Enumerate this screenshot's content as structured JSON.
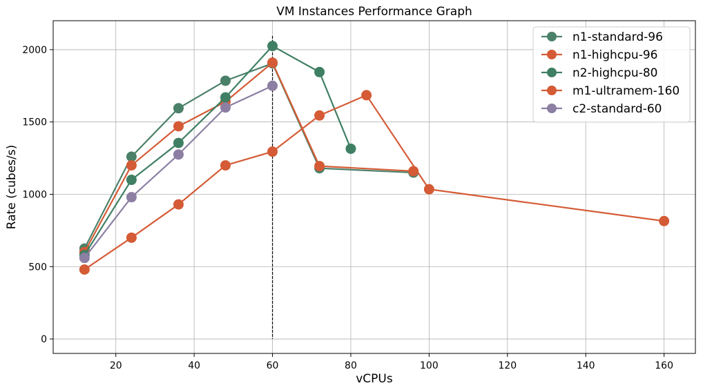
{
  "chart_data": {
    "type": "line",
    "title": "VM Instances Performance Graph",
    "xlabel": "vCPUs",
    "ylabel": "Rate (cubes/s)",
    "xlim": [
      4,
      168
    ],
    "ylim": [
      -100,
      2200
    ],
    "xticks": [
      20,
      40,
      60,
      80,
      100,
      120,
      140,
      160
    ],
    "yticks": [
      0,
      500,
      1000,
      1500,
      2000
    ],
    "grid": true,
    "legend_position": "top-right",
    "vertical_reference_line": {
      "x": 60,
      "style": "dashed",
      "color": "#000000"
    },
    "series": [
      {
        "name": "n1-standard-96",
        "color": "#4b8069",
        "x": [
          12,
          24,
          36,
          48,
          60,
          72,
          96
        ],
        "y": [
          625,
          1260,
          1595,
          1785,
          1905,
          1180,
          1150
        ]
      },
      {
        "name": "n1-highcpu-96",
        "color": "#d45b35",
        "x": [
          12,
          24,
          36,
          48,
          60,
          72,
          96
        ],
        "y": [
          600,
          1200,
          1470,
          1640,
          1910,
          1195,
          1160
        ]
      },
      {
        "name": "n2-highcpu-80",
        "color": "#3f7f63",
        "x": [
          12,
          24,
          36,
          48,
          60,
          72,
          80
        ],
        "y": [
          580,
          1100,
          1355,
          1670,
          2025,
          1845,
          1315
        ]
      },
      {
        "name": "m1-ultramem-160",
        "color": "#d45b35",
        "x": [
          12,
          24,
          36,
          48,
          60,
          72,
          84,
          100,
          160
        ],
        "y": [
          480,
          700,
          930,
          1200,
          1295,
          1545,
          1685,
          1035,
          815
        ]
      },
      {
        "name": "c2-standard-60",
        "color": "#8c7fa3",
        "x": [
          12,
          24,
          36,
          48,
          60
        ],
        "y": [
          560,
          980,
          1275,
          1600,
          1750
        ]
      }
    ]
  }
}
